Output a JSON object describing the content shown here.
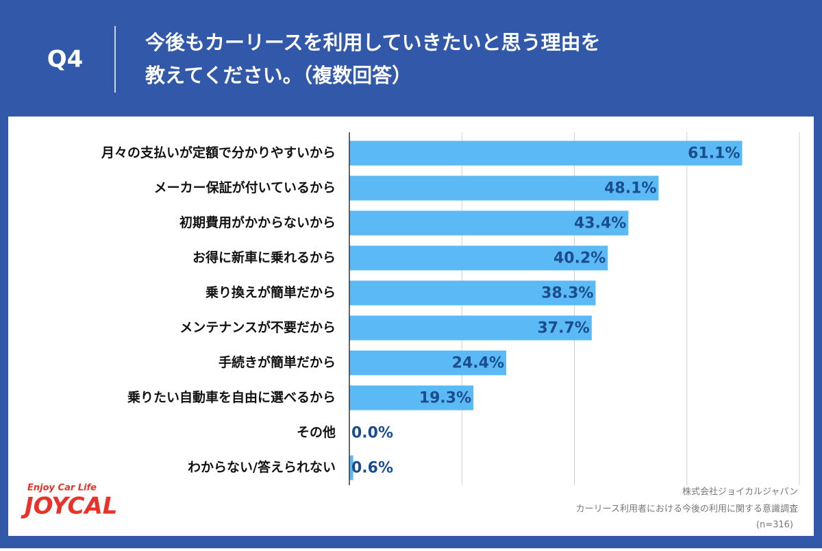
{
  "question": "Q4",
  "footer": [
    "株式会社ジョイカルジャパン",
    "カーリース利用者における今後の利用に関する意識調査",
    "(n=316)"
  ],
  "logo": {
    "tagline": "Enjoy Car Life",
    "name": "JOYCAL"
  },
  "chart_data": {
    "type": "barh",
    "title": [
      "今後もカーリースを利用していきたいと思う理由を",
      "教えてください。（複数回答）"
    ],
    "categories": [
      "月々の支払いが定額で分かりやすいから",
      "メーカー保証が付いているから",
      "初期費用がかからないから",
      "お得に新車に乗れるから",
      "乗り換えが簡単だから",
      "メンテナンスが不要だから",
      "手続きが簡単だから",
      "乗りたい自動車を自由に選べるから",
      "その他",
      "わからない/答えられない"
    ],
    "values": [
      61.1,
      48.1,
      43.4,
      40.2,
      38.3,
      37.7,
      24.4,
      19.3,
      0.0,
      0.6
    ],
    "value_labels": [
      "61.1%",
      "48.1%",
      "43.4%",
      "40.2%",
      "38.3%",
      "37.7%",
      "24.4%",
      "19.3%",
      "0.0%",
      "0.6%"
    ],
    "color": "#5bb9f6",
    "xlim": [
      0,
      70
    ],
    "xticks": [
      0,
      17.5,
      35,
      52.5,
      70
    ],
    "grid": true
  }
}
